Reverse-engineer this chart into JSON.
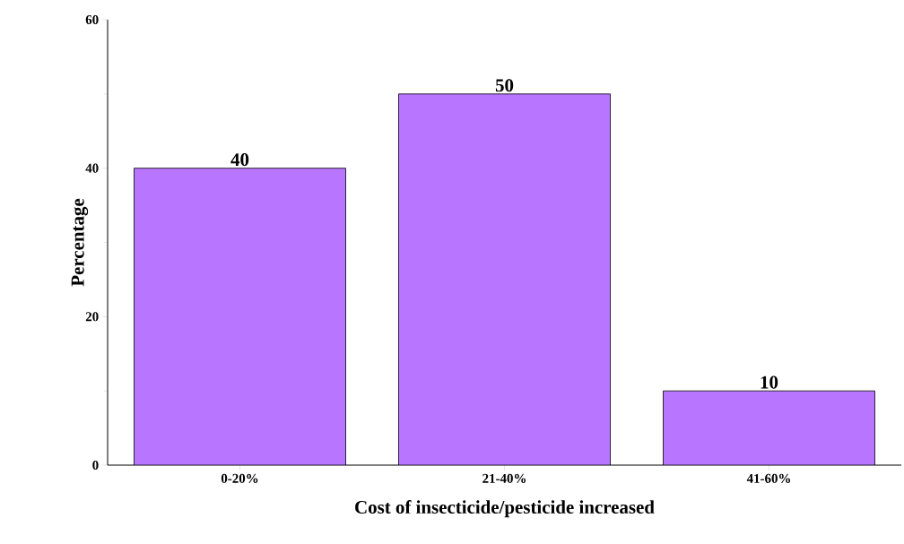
{
  "chart_data": {
    "type": "bar",
    "xlabel": "Cost of insecticide/pesticide increased",
    "ylabel": "Percentage",
    "categories": [
      "0-20%",
      "21-40%",
      "41-60%"
    ],
    "values": [
      40,
      50,
      10
    ],
    "color": "#b875ff",
    "ylim": [
      0,
      60
    ],
    "yticks": [
      0,
      20,
      40,
      60
    ],
    "data_labels": true,
    "grid": false
  }
}
